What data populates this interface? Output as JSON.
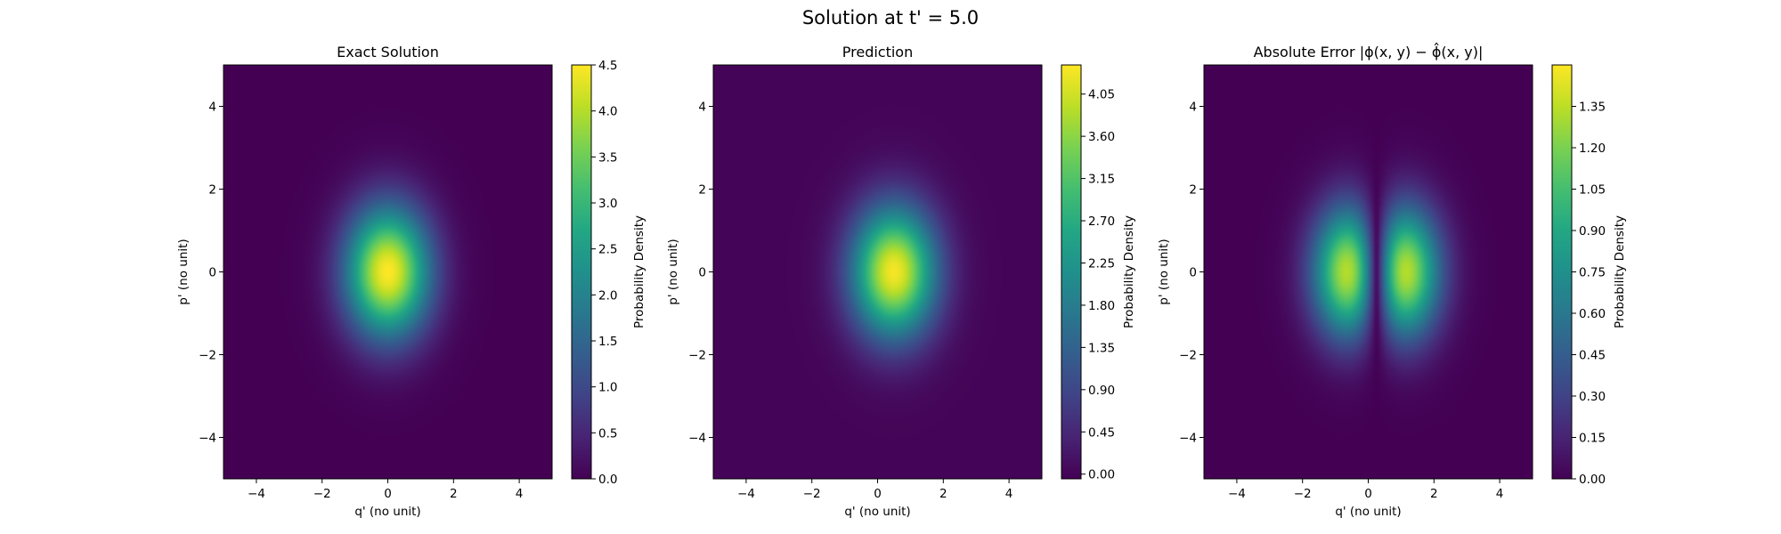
{
  "figure": {
    "title": "Solution at t' = 5.0"
  },
  "chart_data": [
    {
      "type": "heatmap",
      "title": "Exact Solution",
      "xlabel": "q' (no unit)",
      "ylabel": "p' (no unit)",
      "xlim": [
        -5,
        5
      ],
      "ylim": [
        -5,
        5
      ],
      "xticks": [
        -4,
        -2,
        0,
        2,
        4
      ],
      "yticks": [
        -4,
        -2,
        0,
        2,
        4
      ],
      "colorbar": {
        "label": "Probability Density",
        "range": [
          0.0,
          4.5
        ],
        "ticks": [
          0.0,
          0.5,
          1.0,
          1.5,
          2.0,
          2.5,
          3.0,
          3.5,
          4.0,
          4.5
        ],
        "tick_labels": [
          "0.0",
          "0.5",
          "1.0",
          "1.5",
          "2.0",
          "2.5",
          "3.0",
          "3.5",
          "4.0",
          "4.5"
        ]
      },
      "colormap": "viridis",
      "field": {
        "shape": "gaussian",
        "center": [
          0.0,
          0.0
        ],
        "sigma_q": 0.9,
        "sigma_p": 1.1,
        "peak": 4.5
      }
    },
    {
      "type": "heatmap",
      "title": "Prediction",
      "xlabel": "q' (no unit)",
      "ylabel": "p' (no unit)",
      "xlim": [
        -5,
        5
      ],
      "ylim": [
        -5,
        5
      ],
      "xticks": [
        -4,
        -2,
        0,
        2,
        4
      ],
      "yticks": [
        -4,
        -2,
        0,
        2,
        4
      ],
      "colorbar": {
        "label": "Probability Density",
        "range": [
          -0.05,
          4.36
        ],
        "ticks": [
          0.0,
          0.45,
          0.9,
          1.35,
          1.8,
          2.25,
          2.7,
          3.15,
          3.6,
          4.05
        ],
        "tick_labels": [
          "0.00",
          "0.45",
          "0.90",
          "1.35",
          "1.80",
          "2.25",
          "2.70",
          "3.15",
          "3.60",
          "4.05"
        ]
      },
      "colormap": "viridis",
      "field": {
        "shape": "gaussian",
        "center": [
          0.5,
          0.0
        ],
        "sigma_q": 0.9,
        "sigma_p": 1.1,
        "peak": 4.3
      }
    },
    {
      "type": "heatmap",
      "title": "Absolute Error |ϕ(x, y) − ϕ̂(x, y)|",
      "xlabel": "q' (no unit)",
      "ylabel": "p' (no unit)",
      "xlim": [
        -5,
        5
      ],
      "ylim": [
        -5,
        5
      ],
      "xticks": [
        -4,
        -2,
        0,
        2,
        4
      ],
      "yticks": [
        -4,
        -2,
        0,
        2,
        4
      ],
      "colorbar": {
        "label": "Probability Density",
        "range": [
          0.0,
          1.5
        ],
        "ticks": [
          0.0,
          0.15,
          0.3,
          0.45,
          0.6,
          0.75,
          0.9,
          1.05,
          1.2,
          1.35
        ],
        "tick_labels": [
          "0.00",
          "0.15",
          "0.30",
          "0.45",
          "0.60",
          "0.75",
          "0.90",
          "1.05",
          "1.20",
          "1.35"
        ]
      },
      "colormap": "viridis",
      "field": {
        "shape": "abs_difference",
        "peaks": [
          [
            -0.8,
            -0.3
          ],
          [
            1.3,
            -0.3
          ]
        ],
        "max": 1.5
      }
    }
  ]
}
